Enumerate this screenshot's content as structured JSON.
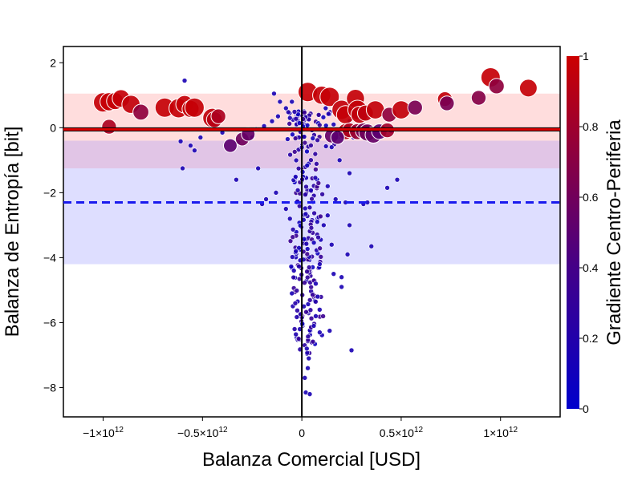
{
  "chart_data": {
    "type": "scatter",
    "xlabel": "Balanza Comercial [USD]",
    "ylabel": "Balanza de Entropía [bit]",
    "colorbar_label": "Gradiente Centro-Periferia",
    "xlim": [
      -1200000000000.0,
      1300000000000.0
    ],
    "ylim": [
      -8.9,
      2.5
    ],
    "x_ticks": [
      {
        "value": -1000000000000.0,
        "mantissa": "−1×10",
        "exp": "12"
      },
      {
        "value": -500000000000.0,
        "mantissa": "−0.5×10",
        "exp": "12"
      },
      {
        "value": 0,
        "mantissa": "0",
        "exp": ""
      },
      {
        "value": 500000000000.0,
        "mantissa": "0.5×10",
        "exp": "12"
      },
      {
        "value": 1000000000000.0,
        "mantissa": "1×10",
        "exp": "12"
      }
    ],
    "y_ticks": [
      2,
      0,
      -2,
      -4,
      -6,
      -8
    ],
    "y_tick_labels": [
      "2",
      "0",
      "−2",
      "−4",
      "−6",
      "−8"
    ],
    "colorbar_ticks": [
      0,
      0.2,
      0.4,
      0.6,
      0.8,
      1
    ],
    "colorbar_tick_labels": [
      "0",
      "0.2",
      "0.4",
      "0.6",
      "0.8",
      "1"
    ],
    "colors": {
      "low": "#0000cc",
      "high": "#cc0000",
      "red_band": "#ffdddd",
      "blue_band": "#dedeff",
      "overlap_band": "#e1c5e6",
      "red_line": "#dd0000",
      "blue_line": "#1a1aee"
    },
    "bands": [
      {
        "color": "red",
        "y": [
          -0.4,
          1.05
        ]
      },
      {
        "color": "blue",
        "y": [
          -4.2,
          -0.4
        ]
      },
      {
        "color": "overlap",
        "y": [
          -1.25,
          -0.4
        ]
      }
    ],
    "reference_lines": [
      {
        "orientation": "horizontal",
        "y": -0.05,
        "style": "solid",
        "color": "red"
      },
      {
        "orientation": "horizontal",
        "y": -2.3,
        "style": "dashed",
        "color": "blue"
      },
      {
        "orientation": "vertical",
        "x": 0,
        "style": "solid",
        "color": "black"
      }
    ],
    "series": [
      {
        "group": "centro",
        "points": [
          {
            "x": -1000000000000.0,
            "y": 0.78,
            "c": 0.97,
            "s": 1.0
          },
          {
            "x": -970000000000.0,
            "y": 0.8,
            "c": 0.97,
            "s": 0.9
          },
          {
            "x": -940000000000.0,
            "y": 0.82,
            "c": 0.96,
            "s": 0.8
          },
          {
            "x": -910000000000.0,
            "y": 0.9,
            "c": 0.96,
            "s": 0.85
          },
          {
            "x": -860000000000.0,
            "y": 0.72,
            "c": 0.95,
            "s": 0.9
          },
          {
            "x": -810000000000.0,
            "y": 0.48,
            "c": 0.7,
            "s": 0.7
          },
          {
            "x": -970000000000.0,
            "y": 0.03,
            "c": 0.85,
            "s": 0.6
          },
          {
            "x": -690000000000.0,
            "y": 0.62,
            "c": 0.97,
            "s": 1.0
          },
          {
            "x": -620000000000.0,
            "y": 0.6,
            "c": 0.97,
            "s": 1.0
          },
          {
            "x": -590000000000.0,
            "y": 0.72,
            "c": 0.97,
            "s": 0.85
          },
          {
            "x": -560000000000.0,
            "y": 0.58,
            "c": 0.96,
            "s": 0.8
          },
          {
            "x": -540000000000.0,
            "y": 0.62,
            "c": 0.97,
            "s": 1.0
          },
          {
            "x": -450000000000.0,
            "y": 0.3,
            "c": 0.95,
            "s": 1.0
          },
          {
            "x": -440000000000.0,
            "y": 0.25,
            "c": 0.9,
            "s": 0.7
          },
          {
            "x": -420000000000.0,
            "y": 0.35,
            "c": 0.85,
            "s": 0.6
          },
          {
            "x": 30000000000.0,
            "y": 1.1,
            "c": 0.97,
            "s": 1.0
          },
          {
            "x": 100000000000.0,
            "y": 1.0,
            "c": 0.96,
            "s": 0.9
          },
          {
            "x": 140000000000.0,
            "y": 0.95,
            "c": 0.97,
            "s": 1.0
          },
          {
            "x": 200000000000.0,
            "y": 0.55,
            "c": 0.95,
            "s": 1.0
          },
          {
            "x": 220000000000.0,
            "y": 0.4,
            "c": 0.96,
            "s": 0.9
          },
          {
            "x": 270000000000.0,
            "y": 0.9,
            "c": 0.96,
            "s": 0.9
          },
          {
            "x": 280000000000.0,
            "y": 0.55,
            "c": 0.95,
            "s": 1.0
          },
          {
            "x": 290000000000.0,
            "y": 0.4,
            "c": 0.94,
            "s": 0.8
          },
          {
            "x": 320000000000.0,
            "y": 0.45,
            "c": 0.93,
            "s": 0.7
          },
          {
            "x": 370000000000.0,
            "y": 0.55,
            "c": 0.95,
            "s": 0.9
          },
          {
            "x": 440000000000.0,
            "y": 0.4,
            "c": 0.7,
            "s": 0.6
          },
          {
            "x": 500000000000.0,
            "y": 0.55,
            "c": 0.95,
            "s": 0.9
          },
          {
            "x": 570000000000.0,
            "y": 0.62,
            "c": 0.6,
            "s": 0.6
          },
          {
            "x": 720000000000.0,
            "y": 0.88,
            "c": 0.95,
            "s": 0.6
          },
          {
            "x": 730000000000.0,
            "y": 0.75,
            "c": 0.6,
            "s": 0.6
          },
          {
            "x": 890000000000.0,
            "y": 0.92,
            "c": 0.65,
            "s": 0.6
          },
          {
            "x": 950000000000.0,
            "y": 1.55,
            "c": 0.97,
            "s": 1.0
          },
          {
            "x": 980000000000.0,
            "y": 1.28,
            "c": 0.7,
            "s": 0.65
          },
          {
            "x": 1140000000000.0,
            "y": 1.22,
            "c": 0.97,
            "s": 0.85
          },
          {
            "x": 220000000000.0,
            "y": -0.12,
            "c": 0.9,
            "s": 0.7
          },
          {
            "x": 240000000000.0,
            "y": -0.08,
            "c": 0.85,
            "s": 0.6
          },
          {
            "x": 280000000000.0,
            "y": -0.12,
            "c": 0.75,
            "s": 0.7
          },
          {
            "x": 310000000000.0,
            "y": -0.1,
            "c": 0.6,
            "s": 0.7
          },
          {
            "x": 330000000000.0,
            "y": -0.15,
            "c": 0.55,
            "s": 0.8
          },
          {
            "x": 360000000000.0,
            "y": -0.22,
            "c": 0.5,
            "s": 0.75
          },
          {
            "x": 390000000000.0,
            "y": -0.12,
            "c": 0.45,
            "s": 0.65
          },
          {
            "x": 430000000000.0,
            "y": -0.08,
            "c": 0.8,
            "s": 0.6
          },
          {
            "x": 150000000000.0,
            "y": -0.25,
            "c": 0.5,
            "s": 0.55
          },
          {
            "x": 180000000000.0,
            "y": -0.3,
            "c": 0.45,
            "s": 0.5
          },
          {
            "x": -300000000000.0,
            "y": -0.35,
            "c": 0.55,
            "s": 0.5
          },
          {
            "x": -270000000000.0,
            "y": -0.2,
            "c": 0.5,
            "s": 0.5
          },
          {
            "x": -360000000000.0,
            "y": -0.55,
            "c": 0.45,
            "s": 0.5
          }
        ]
      },
      {
        "group": "periferia",
        "points": [
          {
            "x": -590000000000.0,
            "y": 1.45
          },
          {
            "x": -610000000000.0,
            "y": -0.42
          },
          {
            "x": -560000000000.0,
            "y": -0.55
          },
          {
            "x": -540000000000.0,
            "y": -0.7
          },
          {
            "x": -510000000000.0,
            "y": -0.3
          },
          {
            "x": -600000000000.0,
            "y": -1.25
          },
          {
            "x": -470000000000.0,
            "y": 0.35
          },
          {
            "x": -400000000000.0,
            "y": -0.15
          },
          {
            "x": -320000000000.0,
            "y": -0.45
          },
          {
            "x": -220000000000.0,
            "y": -1.25
          },
          {
            "x": -330000000000.0,
            "y": -1.6
          },
          {
            "x": -250000000000.0,
            "y": -0.3
          },
          {
            "x": -230000000000.0,
            "y": -0.05
          },
          {
            "x": -190000000000.0,
            "y": 0.05
          },
          {
            "x": -150000000000.0,
            "y": 0.2
          },
          {
            "x": -120000000000.0,
            "y": 0.35
          },
          {
            "x": -140000000000.0,
            "y": 1.05
          },
          {
            "x": -110000000000.0,
            "y": 0.8
          },
          {
            "x": -80000000000.0,
            "y": 0.6
          },
          {
            "x": -50000000000.0,
            "y": 0.8
          },
          {
            "x": -60000000000.0,
            "y": 0.3
          },
          {
            "x": -200000000000.0,
            "y": -2.35
          },
          {
            "x": -180000000000.0,
            "y": -2.2
          },
          {
            "x": -130000000000.0,
            "y": -2.0
          },
          {
            "x": 310000000000.0,
            "y": -2.35
          },
          {
            "x": 330000000000.0,
            "y": -2.3
          },
          {
            "x": 430000000000.0,
            "y": -1.85
          },
          {
            "x": 480000000000.0,
            "y": -1.6
          },
          {
            "x": 350000000000.0,
            "y": -3.65
          },
          {
            "x": 250000000000.0,
            "y": -6.85
          },
          {
            "x": 140000000000.0,
            "y": -6.25
          },
          {
            "x": 200000000000.0,
            "y": -4.6
          },
          {
            "x": 230000000000.0,
            "y": -3.9
          },
          {
            "x": 240000000000.0,
            "y": -1.4
          },
          {
            "x": 450000000000.0,
            "y": -0.1
          },
          {
            "x": 200000000000.0,
            "y": -4.9
          },
          {
            "x": 160000000000.0,
            "y": -4.5
          },
          {
            "x": 220000000000.0,
            "y": -2.3
          },
          {
            "x": 150000000000.0,
            "y": -0.6
          },
          {
            "x": 190000000000.0,
            "y": -1.0
          },
          {
            "x": 130000000000.0,
            "y": -1.8
          },
          {
            "x": 170000000000.0,
            "y": -2.2
          },
          {
            "x": 110000000000.0,
            "y": -3.0
          },
          {
            "x": 150000000000.0,
            "y": -3.6
          },
          {
            "x": 90000000000.0,
            "y": -4.2
          },
          {
            "x": 130000000000.0,
            "y": -2.7
          },
          {
            "x": 240000000000.0,
            "y": -3.0
          },
          {
            "x": 180000000000.0,
            "y": -0.3
          },
          {
            "x": 80000000000.0,
            "y": -5.2
          },
          {
            "x": 60000000000.0,
            "y": -6.1
          },
          {
            "x": 70000000000.0,
            "y": -5.8
          },
          {
            "x": 20000000000.0,
            "y": -8.15
          },
          {
            "x": 40000000000.0,
            "y": -8.2
          },
          {
            "x": 30000000000.0,
            "y": -7.4
          },
          {
            "x": 25000000000.0,
            "y": -6.8
          },
          {
            "x": 15000000000.0,
            "y": -7.7
          },
          {
            "x": 35000000000.0,
            "y": -7.1
          },
          {
            "x": 90000000000.0,
            "y": -6.3
          },
          {
            "x": 70000000000.0,
            "y": -4.8
          },
          {
            "x": -40000000000.0,
            "y": -4.4
          },
          {
            "x": -30000000000.0,
            "y": -3.8
          },
          {
            "x": -60000000000.0,
            "y": -2.8
          },
          {
            "x": -80000000000.0,
            "y": -2.5
          },
          {
            "x": -50000000000.0,
            "y": -5.1
          },
          {
            "x": 10000000000.0,
            "y": -5.5
          },
          {
            "x": -10000000000.0,
            "y": -6.2
          },
          {
            "x": 120000000000.0,
            "y": 0.6
          },
          {
            "x": 160000000000.0,
            "y": 0.1
          },
          {
            "x": 240000000000.0,
            "y": 0.2
          },
          {
            "x": 260000000000.0,
            "y": -0.3
          },
          {
            "x": 400000000000.0,
            "y": -0.15
          }
        ]
      }
    ]
  }
}
